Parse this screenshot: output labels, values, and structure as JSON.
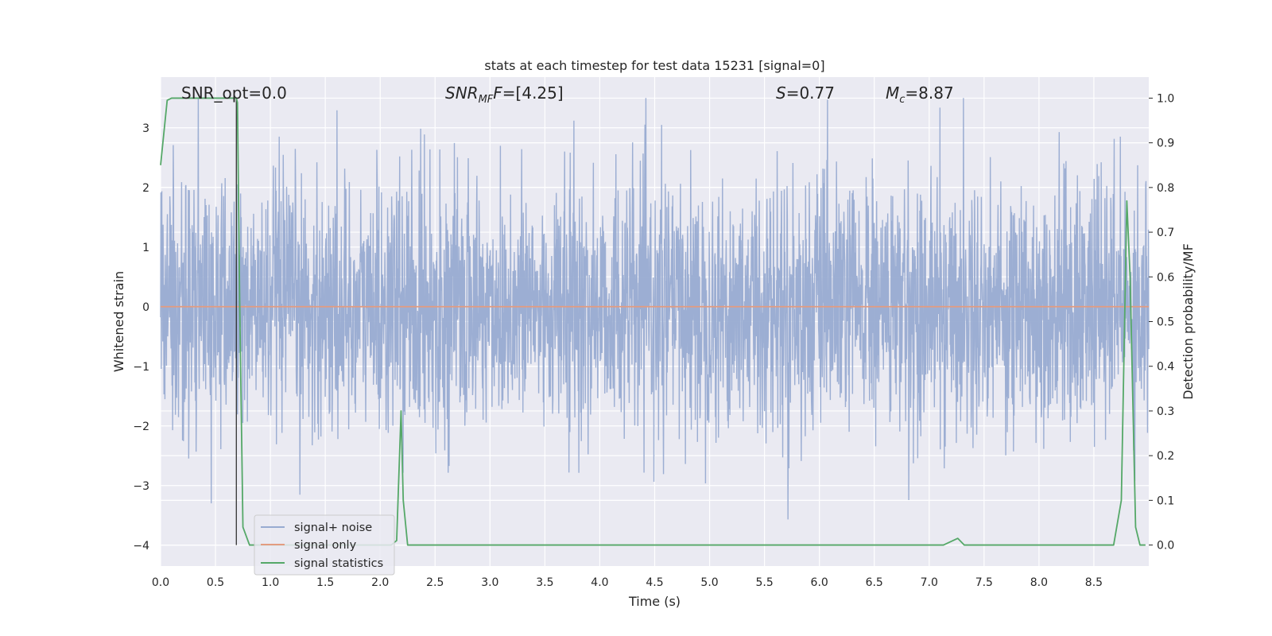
{
  "chart_data": {
    "type": "line",
    "title": "stats at each timestep for test data 15231 [signal=0]",
    "xlabel": "Time (s)",
    "ylabel": "Whitened strain",
    "y2label": "Detection probability/MF",
    "xlim": [
      0.0,
      9.0
    ],
    "ylim": [
      -4.35,
      3.85
    ],
    "y2lim": [
      -0.047,
      1.047
    ],
    "xticks": [
      "0.0",
      "0.5",
      "1.0",
      "1.5",
      "2.0",
      "2.5",
      "3.0",
      "3.5",
      "4.0",
      "4.5",
      "5.0",
      "5.5",
      "6.0",
      "6.5",
      "7.0",
      "7.5",
      "8.0",
      "8.5"
    ],
    "xtick_values": [
      0.0,
      0.5,
      1.0,
      1.5,
      2.0,
      2.5,
      3.0,
      3.5,
      4.0,
      4.5,
      5.0,
      5.5,
      6.0,
      6.5,
      7.0,
      7.5,
      8.0,
      8.5
    ],
    "yticks": [
      "−4",
      "−3",
      "−2",
      "−1",
      "0",
      "1",
      "2",
      "3"
    ],
    "ytick_values": [
      -4,
      -3,
      -2,
      -1,
      0,
      1,
      2,
      3
    ],
    "y2ticks": [
      "0.0",
      "0.1",
      "0.2",
      "0.3",
      "0.4",
      "0.5",
      "0.6",
      "0.7",
      "0.8",
      "0.9",
      "1.0"
    ],
    "y2tick_values": [
      0.0,
      0.1,
      0.2,
      0.3,
      0.4,
      0.5,
      0.6,
      0.7,
      0.8,
      0.9,
      1.0
    ],
    "grid": true,
    "legend_position": "lower-left",
    "legend": [
      "signal+ noise",
      "signal only",
      "signal statistics"
    ],
    "annotations": {
      "snr_opt": "SNR_opt=0.0",
      "snr_mf_main": "SNR",
      "snr_mf_sub": "MF",
      "snr_mf_rest": "=[4.25]",
      "s_main": "S",
      "s_rest": "=0.77",
      "mc_main": "M",
      "mc_sub": "c",
      "mc_rest": "=8.87"
    },
    "vline_x": 0.69,
    "series": [
      {
        "name": "signal+ noise",
        "color": "#98abd1",
        "axis": "left",
        "sample_rate_hz": 2048,
        "duration_s": 9.0,
        "envelope_min": -3.85,
        "envelope_max": 3.5
      },
      {
        "name": "signal only",
        "color": "#e39c80",
        "axis": "left",
        "x": [
          0.0,
          9.0
        ],
        "y": [
          0.0,
          0.0
        ]
      },
      {
        "name": "signal statistics",
        "color": "#55a868",
        "axis": "right",
        "x": [
          0.0,
          0.06,
          0.1,
          0.2,
          0.3,
          0.4,
          0.5,
          0.6,
          0.69,
          0.7,
          0.72,
          0.75,
          0.81,
          0.9,
          1.0,
          2.0,
          2.1,
          2.15,
          2.19,
          2.21,
          2.25,
          2.3,
          3.0,
          4.0,
          5.0,
          6.0,
          7.0,
          7.13,
          7.26,
          7.32,
          7.5,
          8.0,
          8.5,
          8.68,
          8.75,
          8.8,
          8.83,
          8.88,
          8.92,
          8.97
        ],
        "y": [
          0.85,
          0.995,
          1.0,
          1.0,
          1.0,
          1.0,
          1.0,
          1.0,
          1.0,
          0.99,
          0.55,
          0.04,
          0.0,
          0.0,
          0.0,
          0.0,
          0.0,
          0.01,
          0.3,
          0.1,
          0.0,
          0.0,
          0.0,
          0.0,
          0.0,
          0.0,
          0.0,
          0.0,
          0.015,
          0.0,
          0.0,
          0.0,
          0.0,
          0.0,
          0.1,
          0.77,
          0.6,
          0.04,
          0.0,
          0.0
        ]
      }
    ]
  }
}
